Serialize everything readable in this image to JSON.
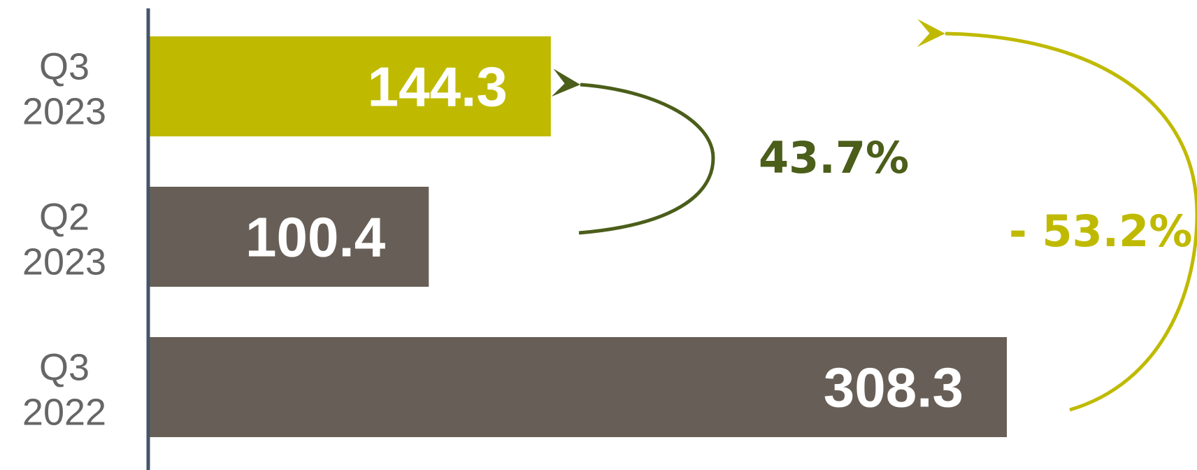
{
  "chart_data": {
    "type": "bar",
    "orientation": "horizontal",
    "categories": [
      [
        "Q3",
        "2023"
      ],
      [
        "Q2",
        "2023"
      ],
      [
        "Q3",
        "2022"
      ]
    ],
    "values": [
      144.3,
      100.4,
      308.3
    ],
    "value_labels": [
      "144.3",
      "100.4",
      "308.3"
    ],
    "bar_colors": [
      "#bfba00",
      "#675f57",
      "#675f57"
    ],
    "xlim": [
      0,
      308.3
    ],
    "grid": false,
    "legend": "none",
    "annotations": [
      {
        "text": "43.7%",
        "color": "#4b5e1a",
        "from": "Q2 2023",
        "to": "Q3 2023"
      },
      {
        "text": "- 53.2%",
        "color": "#bfba00",
        "from": "Q3 2022",
        "to": "Q3 2023"
      }
    ],
    "axis_color": "#44546a"
  }
}
